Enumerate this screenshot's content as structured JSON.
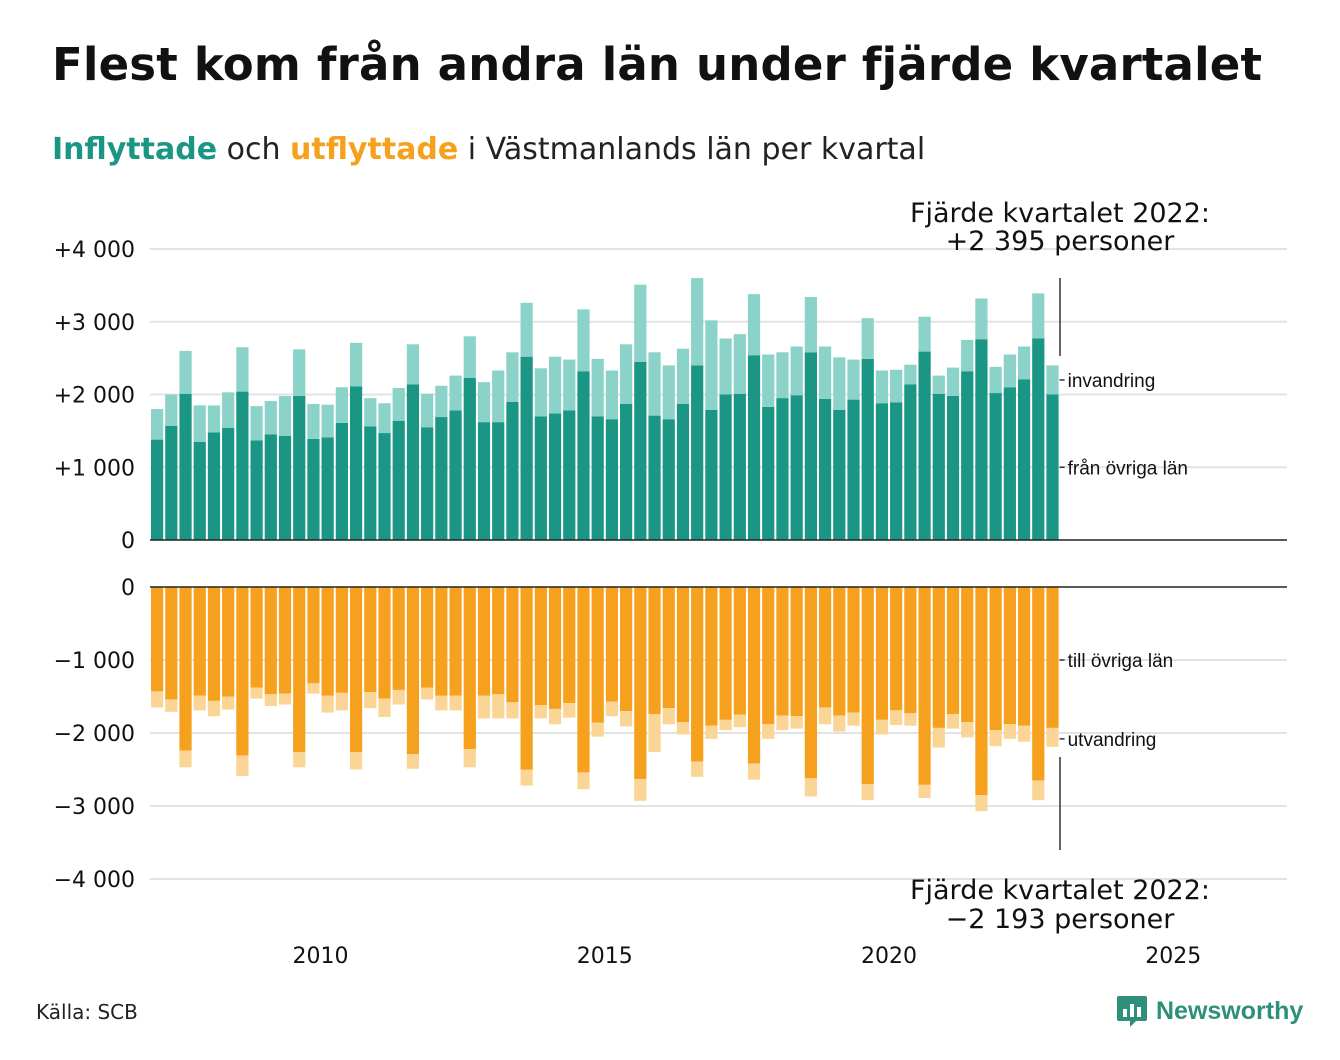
{
  "title": "Flest kom från andra län under fjärde kvartalet",
  "subtitle": {
    "in_word": "Inflyttade",
    "mid_word": " och ",
    "out_word": "utflyttade",
    "rest": " i Västmanlands län per kvartal"
  },
  "colors": {
    "in_domestic": "#1b9584",
    "in_immigration": "#8bd3c9",
    "out_domestic": "#f5a11d",
    "out_emigration": "#fbd595",
    "grid": "#e3e3e3",
    "axis": "#222222",
    "brand": "#2e8f7a"
  },
  "source": "Källa: SCB",
  "brand": {
    "name": "Newsworthy",
    "icon": "newsworthy-logo-icon"
  },
  "chart_data": {
    "type": "bar",
    "stacked": true,
    "panels": [
      {
        "name": "Inflyttade",
        "ylim": [
          0,
          4000
        ],
        "yticks": [
          {
            "value": 0,
            "label": "0"
          },
          {
            "value": 1000,
            "label": "+1 000"
          },
          {
            "value": 2000,
            "label": "+2 000"
          },
          {
            "value": 3000,
            "label": "+3 000"
          },
          {
            "value": 4000,
            "label": "+4 000"
          }
        ],
        "series": [
          {
            "name": "från övriga län",
            "values": [
              1380,
              1570,
              2010,
              1350,
              1480,
              1540,
              2040,
              1370,
              1450,
              1430,
              1980,
              1390,
              1410,
              1610,
              2110,
              1560,
              1470,
              1640,
              2140,
              1550,
              1690,
              1780,
              2230,
              1620,
              1620,
              1900,
              2520,
              1700,
              1740,
              1780,
              2320,
              1700,
              1660,
              1870,
              2450,
              1710,
              1660,
              1870,
              2400,
              1790,
              2000,
              2010,
              2540,
              1830,
              1950,
              1990,
              2580,
              1940,
              1790,
              1930,
              2490,
              1880,
              1890,
              2140,
              2590,
              2010,
              1980,
              2320,
              2760,
              2020,
              2100,
              2210,
              2770,
              2000
            ]
          },
          {
            "name": "invandring",
            "values": [
              420,
              430,
              590,
              500,
              370,
              490,
              610,
              470,
              460,
              550,
              640,
              480,
              450,
              490,
              600,
              390,
              410,
              450,
              550,
              460,
              430,
              480,
              570,
              550,
              710,
              680,
              740,
              660,
              780,
              700,
              850,
              790,
              670,
              820,
              1060,
              870,
              740,
              760,
              1200,
              1230,
              770,
              820,
              840,
              720,
              630,
              670,
              760,
              720,
              720,
              550,
              560,
              450,
              450,
              270,
              480,
              250,
              390,
              430,
              560,
              360,
              450,
              450,
              620,
              400
            ]
          }
        ]
      },
      {
        "name": "Utflyttade",
        "ylim": [
          -4000,
          0
        ],
        "yticks": [
          {
            "value": 0,
            "label": "0"
          },
          {
            "value": -1000,
            "label": "−1 000"
          },
          {
            "value": -2000,
            "label": "−2 000"
          },
          {
            "value": -3000,
            "label": "−3 000"
          },
          {
            "value": -4000,
            "label": "−4 000"
          }
        ],
        "series": [
          {
            "name": "till övriga län",
            "values": [
              -1430,
              -1540,
              -2240,
              -1490,
              -1560,
              -1500,
              -2310,
              -1380,
              -1470,
              -1460,
              -2260,
              -1320,
              -1490,
              -1450,
              -2260,
              -1440,
              -1530,
              -1410,
              -2290,
              -1380,
              -1490,
              -1490,
              -2220,
              -1490,
              -1470,
              -1580,
              -2500,
              -1620,
              -1670,
              -1590,
              -2540,
              -1860,
              -1570,
              -1700,
              -2630,
              -1740,
              -1660,
              -1850,
              -2390,
              -1900,
              -1820,
              -1750,
              -2420,
              -1880,
              -1760,
              -1770,
              -2620,
              -1650,
              -1760,
              -1720,
              -2700,
              -1820,
              -1690,
              -1730,
              -2710,
              -1930,
              -1740,
              -1850,
              -2850,
              -1960,
              -1880,
              -1900,
              -2650,
              -1930
            ]
          },
          {
            "name": "utvandring",
            "values": [
              -220,
              -170,
              -230,
              -200,
              -210,
              -180,
              -280,
              -150,
              -160,
              -150,
              -210,
              -140,
              -230,
              -240,
              -240,
              -220,
              -250,
              -200,
              -200,
              -160,
              -200,
              -200,
              -250,
              -310,
              -330,
              -220,
              -220,
              -180,
              -210,
              -200,
              -230,
              -190,
              -200,
              -210,
              -300,
              -520,
              -220,
              -170,
              -210,
              -180,
              -140,
              -170,
              -220,
              -200,
              -200,
              -170,
              -250,
              -230,
              -220,
              -180,
              -220,
              -200,
              -200,
              -170,
              -180,
              -270,
              -200,
              -210,
              -220,
              -220,
              -200,
              -220,
              -270,
              -260
            ]
          }
        ]
      }
    ],
    "x": {
      "start_year": 2007,
      "start_quarter": 1,
      "quarters": 64,
      "xlim": [
        2007,
        2027
      ],
      "ticks": [
        {
          "value": 2010,
          "label": "2010"
        },
        {
          "value": 2015,
          "label": "2015"
        },
        {
          "value": 2020,
          "label": "2020"
        },
        {
          "value": 2025,
          "label": "2025"
        }
      ]
    },
    "annotations": {
      "top_line1": "Fjärde kvartalet 2022:",
      "top_line2": "+2 395 personer",
      "bottom_line1": "Fjärde kvartalet 2022:",
      "bottom_line2": "−2 193 personer"
    }
  }
}
